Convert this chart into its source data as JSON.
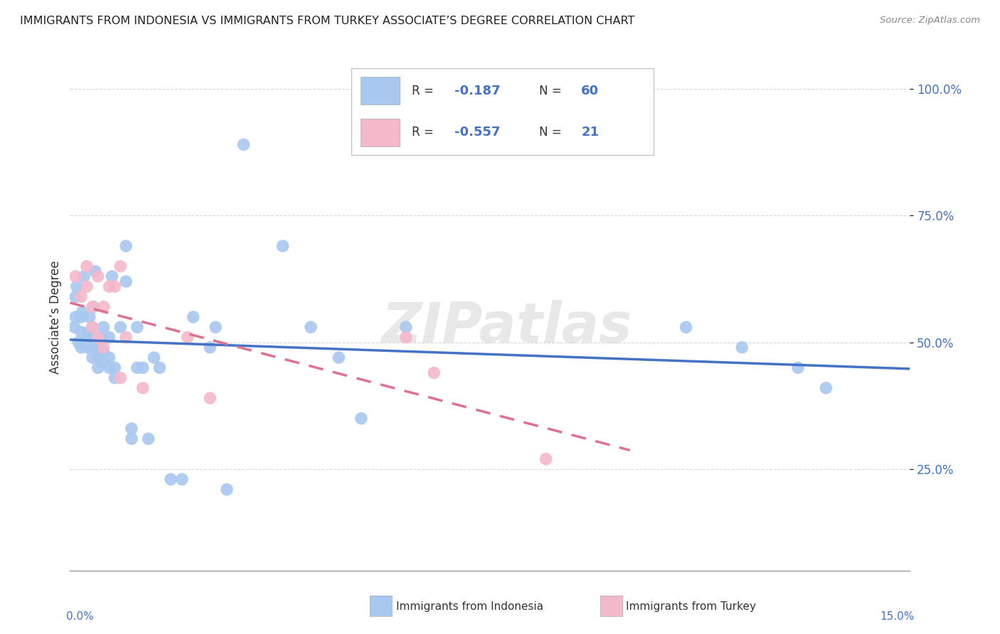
{
  "title": "IMMIGRANTS FROM INDONESIA VS IMMIGRANTS FROM TURKEY ASSOCIATE’S DEGREE CORRELATION CHART",
  "source": "Source: ZipAtlas.com",
  "ylabel": "Associate’s Degree",
  "ytick_labels": [
    "25.0%",
    "50.0%",
    "75.0%",
    "100.0%"
  ],
  "ytick_positions": [
    0.25,
    0.5,
    0.75,
    1.0
  ],
  "xlim": [
    0.0,
    0.15
  ],
  "ylim": [
    0.05,
    1.05
  ],
  "watermark": "ZIPatlas",
  "color_indonesia": "#a8c8f0",
  "color_turkey": "#f4b8cb",
  "color_indonesia_line": "#4472c4",
  "color_turkey_line": "#e07090",
  "color_axis_labels": "#4472c4",
  "color_text": "#333333",
  "color_grid": "#d8d8d8",
  "indonesia_x": [
    0.0008,
    0.001,
    0.001,
    0.0012,
    0.0015,
    0.002,
    0.002,
    0.002,
    0.0022,
    0.0025,
    0.003,
    0.003,
    0.0032,
    0.0035,
    0.004,
    0.004,
    0.004,
    0.004,
    0.0042,
    0.0045,
    0.005,
    0.005,
    0.005,
    0.0055,
    0.006,
    0.006,
    0.006,
    0.007,
    0.007,
    0.007,
    0.0075,
    0.008,
    0.008,
    0.009,
    0.01,
    0.01,
    0.011,
    0.011,
    0.012,
    0.012,
    0.013,
    0.014,
    0.015,
    0.016,
    0.018,
    0.02,
    0.022,
    0.025,
    0.026,
    0.028,
    0.031,
    0.038,
    0.043,
    0.048,
    0.052,
    0.06,
    0.11,
    0.12,
    0.13,
    0.135
  ],
  "indonesia_y": [
    0.53,
    0.55,
    0.59,
    0.61,
    0.5,
    0.49,
    0.52,
    0.55,
    0.56,
    0.63,
    0.49,
    0.51,
    0.52,
    0.55,
    0.47,
    0.49,
    0.51,
    0.53,
    0.57,
    0.64,
    0.45,
    0.47,
    0.49,
    0.51,
    0.46,
    0.48,
    0.53,
    0.45,
    0.47,
    0.51,
    0.63,
    0.43,
    0.45,
    0.53,
    0.62,
    0.69,
    0.31,
    0.33,
    0.45,
    0.53,
    0.45,
    0.31,
    0.47,
    0.45,
    0.23,
    0.23,
    0.55,
    0.49,
    0.53,
    0.21,
    0.89,
    0.69,
    0.53,
    0.47,
    0.35,
    0.53,
    0.53,
    0.49,
    0.45,
    0.41
  ],
  "turkey_x": [
    0.001,
    0.002,
    0.003,
    0.003,
    0.004,
    0.004,
    0.005,
    0.005,
    0.006,
    0.006,
    0.007,
    0.008,
    0.009,
    0.009,
    0.01,
    0.013,
    0.021,
    0.025,
    0.06,
    0.065,
    0.085
  ],
  "turkey_y": [
    0.63,
    0.59,
    0.61,
    0.65,
    0.53,
    0.57,
    0.51,
    0.63,
    0.49,
    0.57,
    0.61,
    0.61,
    0.43,
    0.65,
    0.51,
    0.41,
    0.51,
    0.39,
    0.51,
    0.44,
    0.27
  ],
  "background_color": "#ffffff"
}
